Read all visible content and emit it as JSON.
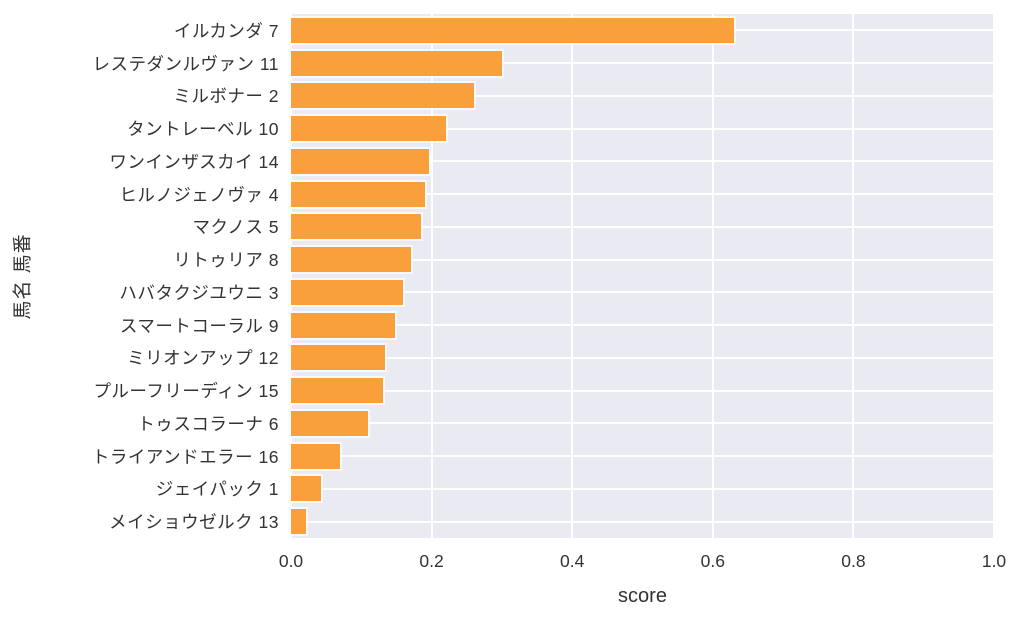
{
  "chart_data": {
    "type": "bar",
    "orientation": "horizontal",
    "title": "",
    "xlabel": "score",
    "ylabel": "馬名 馬番",
    "xlim": [
      0.0,
      1.0
    ],
    "xticks": [
      "0.0",
      "0.2",
      "0.4",
      "0.6",
      "0.8",
      "1.0"
    ],
    "xtick_values": [
      0.0,
      0.2,
      0.4,
      0.6,
      0.8,
      1.0
    ],
    "grid": true,
    "legend": false,
    "categories": [
      "イルカンダ 7",
      "レステダンルヴァン 11",
      "ミルボナー 2",
      "タントレーベル 10",
      "ワンインザスカイ 14",
      "ヒルノジェノヴァ 4",
      "マクノス 5",
      "リトゥリア 8",
      "ハバタクジユウニ 3",
      "スマートコーラル 9",
      "ミリオンアップ 12",
      "プルーフリーディン 15",
      "トゥスコラーナ 6",
      "トライアンドエラー 16",
      "ジェイパック 1",
      "メイショウゼルク 13"
    ],
    "values": [
      0.63,
      0.3,
      0.26,
      0.22,
      0.196,
      0.19,
      0.185,
      0.17,
      0.16,
      0.148,
      0.134,
      0.131,
      0.11,
      0.07,
      0.042,
      0.022
    ],
    "colors": {
      "bar": "#f9a03c",
      "plot_background": "#eaeaf2",
      "gridline": "#ffffff",
      "text": "#333333"
    }
  }
}
